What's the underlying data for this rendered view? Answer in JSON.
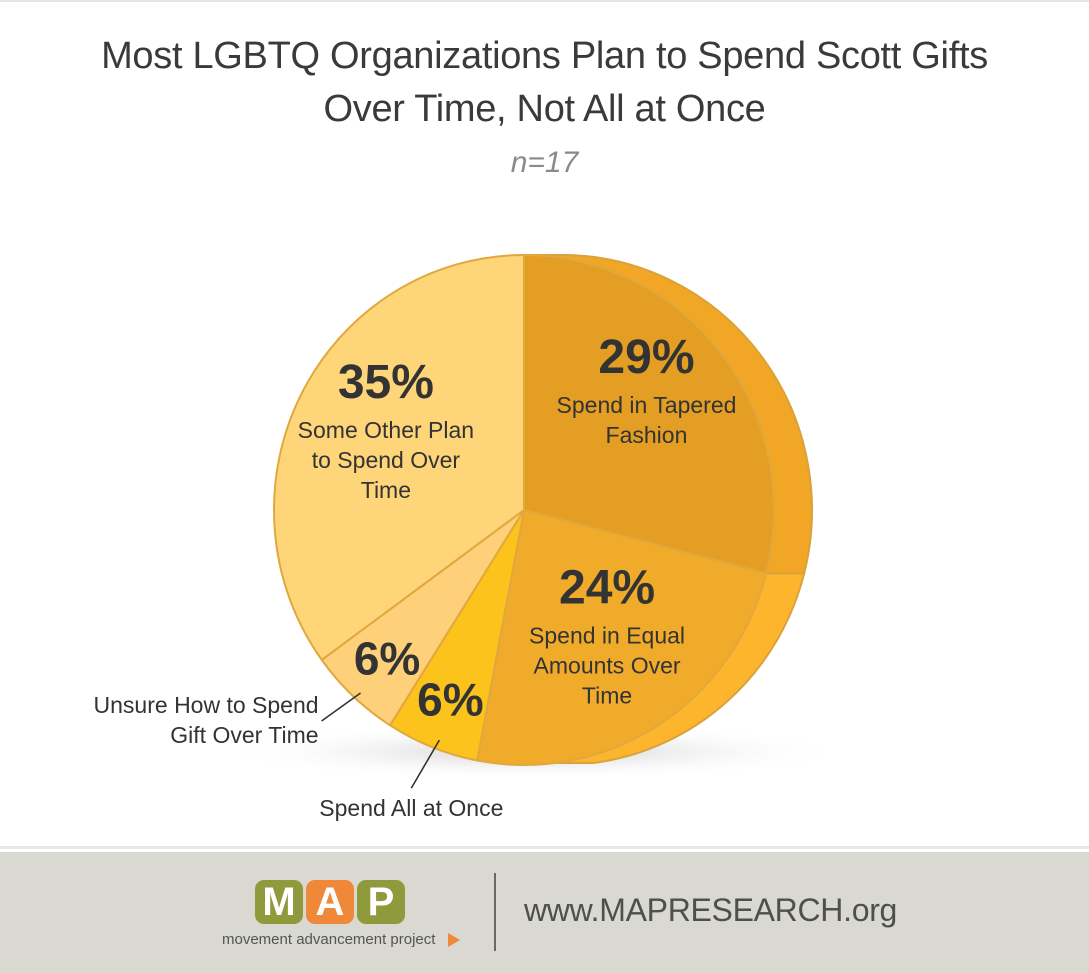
{
  "header": {
    "title_line1": "Most LGBTQ Organizations Plan to Spend Scott Gifts",
    "title_line2": "Over Time, Not All at Once",
    "subtitle": "n=17"
  },
  "chart_data": {
    "type": "pie",
    "title": "Most LGBTQ Organizations Plan to Spend Scott Gifts Over Time, Not All at Once",
    "subtitle": "n=17",
    "slices": [
      {
        "label": "Spend in Tapered Fashion",
        "value": 29,
        "value_label": "29%",
        "color": "#e39e23"
      },
      {
        "label": "Spend in Equal Amounts Over Time",
        "value": 24,
        "value_label": "24%",
        "color": "#f0ab2b"
      },
      {
        "label": "Spend All at Once",
        "value": 6,
        "value_label": "6%",
        "color": "#fcc31c"
      },
      {
        "label": "Unsure How to Spend Gift Over Time",
        "value": 6,
        "value_label": "6%",
        "color": "#fdd079"
      },
      {
        "label": "Some Other Plan to Spend Over Time",
        "value": 35,
        "value_label": "35%",
        "color": "#fed679"
      }
    ]
  },
  "footer": {
    "logo_letters": [
      "M",
      "A",
      "P"
    ],
    "logo_colors": [
      "#8e9a3b",
      "#f0883a",
      "#8e9a3b"
    ],
    "logo_subtitle": "movement advancement project",
    "url": "www.MAPRESEARCH.org"
  }
}
